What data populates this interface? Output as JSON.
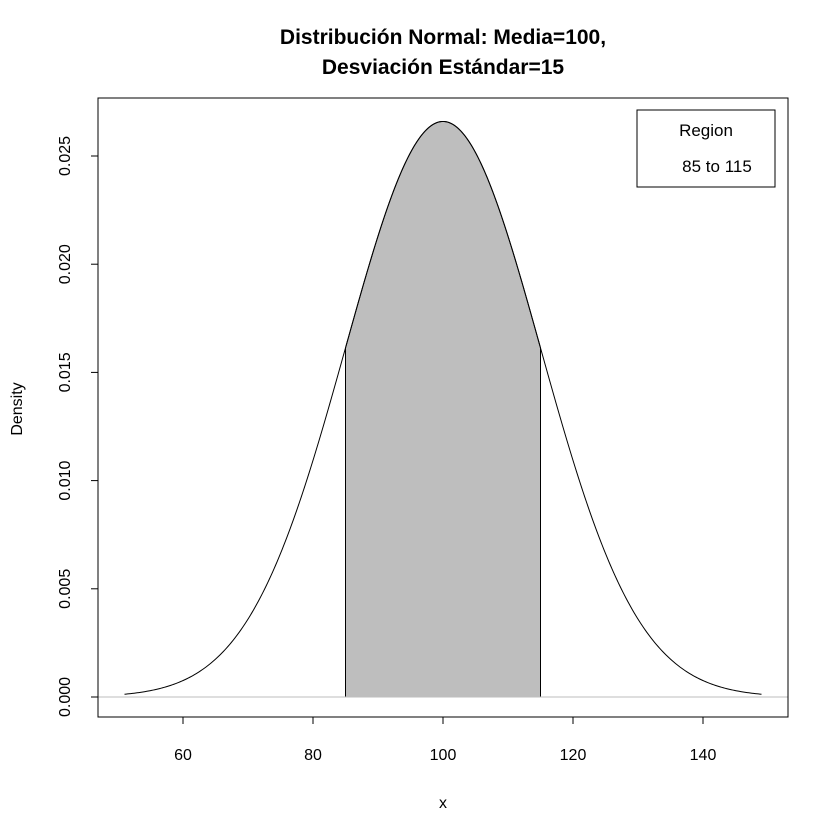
{
  "chart_data": {
    "type": "area",
    "title_line1": "Distribución Normal:  Media=100,",
    "title_line2": "Desviación Estándar=15",
    "xlabel": "x",
    "ylabel": "Density",
    "distribution": {
      "mean": 100,
      "sd": 15
    },
    "xlim": [
      50,
      150
    ],
    "ylim": [
      0,
      0.0266
    ],
    "x_ticks": [
      60,
      80,
      100,
      120,
      140
    ],
    "y_ticks": [
      0.0,
      0.005,
      0.01,
      0.015,
      0.02,
      0.025
    ],
    "x_tick_labels": [
      "60",
      "80",
      "100",
      "120",
      "140"
    ],
    "y_tick_labels": [
      "0.000",
      "0.005",
      "0.010",
      "0.015",
      "0.020",
      "0.025"
    ],
    "shaded_region": [
      85,
      115
    ],
    "legend": {
      "title": "Region",
      "entry": "85 to 115",
      "position": "top-right"
    },
    "colors": {
      "curve": "#000000",
      "shade": "#bebebe",
      "baseline": "#bebebe"
    }
  }
}
